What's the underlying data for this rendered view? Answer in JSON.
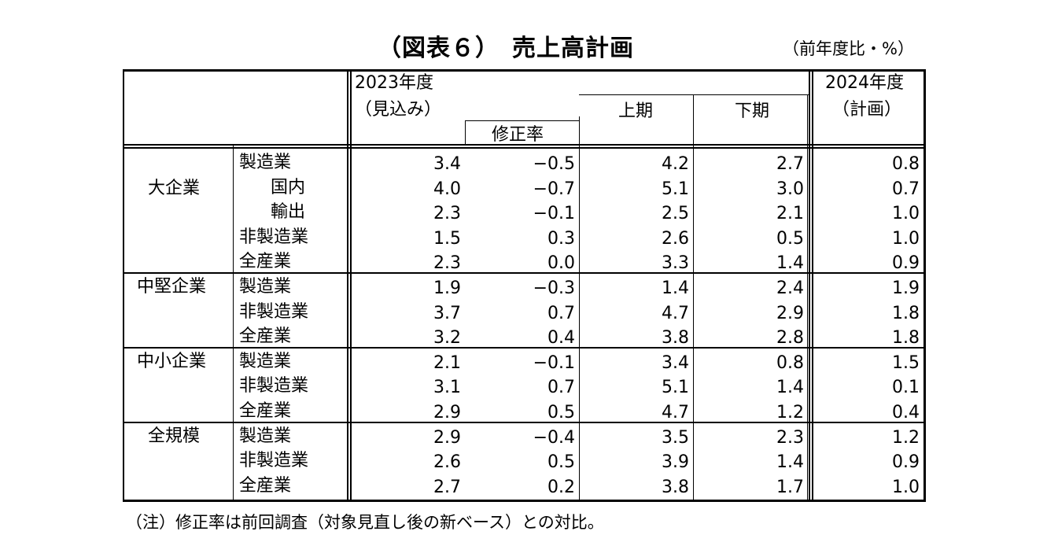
{
  "title": "（図表６）　売上高計画",
  "unit": "（前年度比・%）",
  "header": {
    "fy2023_line1": "2023年度",
    "fy2023_line2": "（見込み）",
    "revision": "修正率",
    "h1": "上期",
    "h2": "下期",
    "fy2024_line1": "2024年度",
    "fy2024_line2": "（計画）"
  },
  "groups": [
    {
      "name": "大企業",
      "rows": [
        {
          "label": "製造業",
          "v": [
            "3.4",
            "−0.5",
            "4.2",
            "2.7",
            "0.8"
          ]
        },
        {
          "label": "国内",
          "v": [
            "4.0",
            "−0.7",
            "5.1",
            "3.0",
            "0.7"
          ]
        },
        {
          "label": "輸出",
          "v": [
            "2.3",
            "−0.1",
            "2.5",
            "2.1",
            "1.0"
          ]
        },
        {
          "label": "非製造業",
          "v": [
            "1.5",
            "0.3",
            "2.6",
            "0.5",
            "1.0"
          ]
        },
        {
          "label": "全産業",
          "v": [
            "2.3",
            "0.0",
            "3.3",
            "1.4",
            "0.9"
          ]
        }
      ]
    },
    {
      "name": "中堅企業",
      "rows": [
        {
          "label": "製造業",
          "v": [
            "1.9",
            "−0.3",
            "1.4",
            "2.4",
            "1.9"
          ]
        },
        {
          "label": "非製造業",
          "v": [
            "3.7",
            "0.7",
            "4.7",
            "2.9",
            "1.8"
          ]
        },
        {
          "label": "全産業",
          "v": [
            "3.2",
            "0.4",
            "3.8",
            "2.8",
            "1.8"
          ]
        }
      ]
    },
    {
      "name": "中小企業",
      "rows": [
        {
          "label": "製造業",
          "v": [
            "2.1",
            "−0.1",
            "3.4",
            "0.8",
            "1.5"
          ]
        },
        {
          "label": "非製造業",
          "v": [
            "3.1",
            "0.7",
            "5.1",
            "1.4",
            "0.1"
          ]
        },
        {
          "label": "全産業",
          "v": [
            "2.9",
            "0.5",
            "4.7",
            "1.2",
            "0.4"
          ]
        }
      ]
    },
    {
      "name": "全規模",
      "rows": [
        {
          "label": "製造業",
          "v": [
            "2.9",
            "−0.4",
            "3.5",
            "2.3",
            "1.2"
          ]
        },
        {
          "label": "非製造業",
          "v": [
            "2.6",
            "0.5",
            "3.9",
            "1.4",
            "0.9"
          ]
        },
        {
          "label": "全産業",
          "v": [
            "2.7",
            "0.2",
            "3.8",
            "1.7",
            "1.0"
          ]
        }
      ]
    }
  ],
  "note": "（注）修正率は前回調査（対象見直し後の新ベース）との対比。"
}
